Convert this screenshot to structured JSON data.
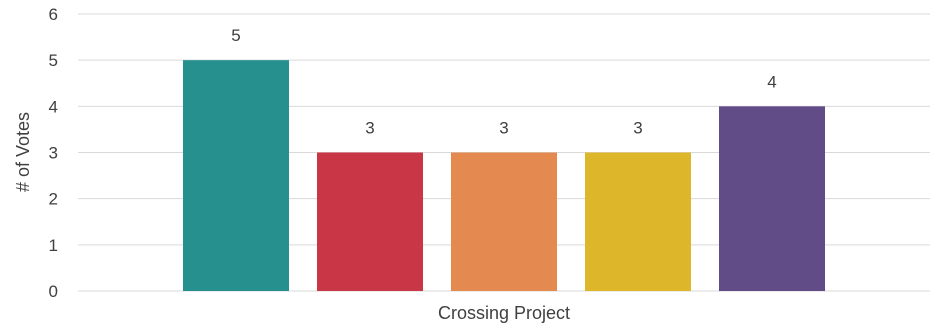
{
  "chart_data": {
    "type": "bar",
    "categories": [
      "Crossing Project"
    ],
    "series": [
      {
        "values": [
          5
        ],
        "color": "#26908E"
      },
      {
        "values": [
          3
        ],
        "color": "#C93747"
      },
      {
        "values": [
          3
        ],
        "color": "#E48A50"
      },
      {
        "values": [
          3
        ],
        "color": "#DDB62A"
      },
      {
        "values": [
          4
        ],
        "color": "#614C87"
      }
    ],
    "ylabel": "# of Votes",
    "xlabel": "",
    "ylim": [
      0,
      6
    ],
    "yticks": [
      0,
      1,
      2,
      3,
      4,
      5,
      6
    ],
    "grid": true,
    "data_labels": true
  }
}
